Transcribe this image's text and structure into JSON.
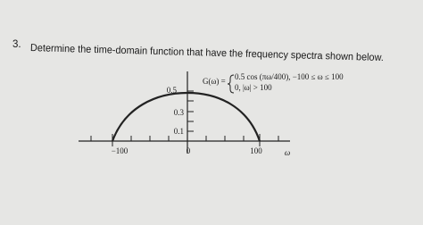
{
  "problem": {
    "number": "3.",
    "text": "Determine the time-domain function that have the frequency spectra shown below."
  },
  "equation": {
    "lhs": "G(ω) =",
    "case_1": "0.5 cos (πω/400), −100 ≤ ω ≤ 100",
    "case_2": "0, |ω| > 100"
  },
  "figure": {
    "y_labels": [
      "0.5",
      "0.3",
      "0.1"
    ],
    "x_labels": [
      "−100",
      "0",
      "100"
    ],
    "x_axis_label": "ω"
  }
}
